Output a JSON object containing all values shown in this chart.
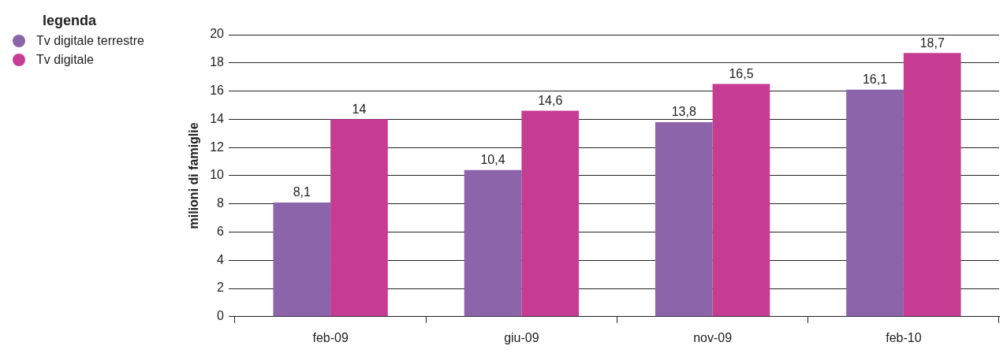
{
  "chart_data": {
    "type": "bar",
    "ylabel": "milioni di famiglie",
    "legend_title": "legenda",
    "legend": "top left",
    "grid": "y",
    "categories": [
      "feb-09",
      "giu-09",
      "nov-09",
      "feb-10"
    ],
    "series": [
      {
        "name": "Tv digitale terrestre",
        "color": "#8b64aa",
        "values": [
          8.1,
          10.4,
          13.8,
          16.1
        ],
        "value_labels": [
          "8,1",
          "10,4",
          "13,8",
          "16,1"
        ]
      },
      {
        "name": "Tv digitale",
        "color": "#c63c92",
        "values": [
          14,
          14.6,
          16.5,
          18.7
        ],
        "value_labels": [
          "14",
          "14,6",
          "16,5",
          "18,7"
        ]
      }
    ],
    "ylim": [
      0,
      20
    ],
    "yticks": [
      0,
      2,
      4,
      6,
      8,
      10,
      12,
      14,
      16,
      18,
      20
    ]
  }
}
